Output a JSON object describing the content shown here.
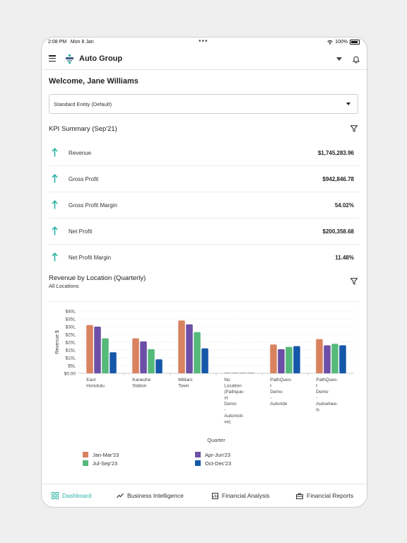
{
  "status": {
    "time": "2:08 PM",
    "date": "Mon 8 Jan",
    "battery": "100%"
  },
  "app": {
    "title": "Auto Group"
  },
  "welcome": "Welcome, Jane Williams",
  "entity_select": {
    "value": "Standard Entity (Default)"
  },
  "kpi": {
    "title": "KPI Summary (Sep'21)",
    "items": [
      {
        "label": "Revenue",
        "value": "$1,745,283.96",
        "trend": "up"
      },
      {
        "label": "Gross Profit",
        "value": "$942,846.78",
        "trend": "up"
      },
      {
        "label": "Gross Profit Margin",
        "value": "54.02%",
        "trend": "up"
      },
      {
        "label": "Net Profit",
        "value": "$200,358.68",
        "trend": "up"
      },
      {
        "label": "Net Profit Margin",
        "value": "11.48%",
        "trend": "up"
      }
    ]
  },
  "chart_section": {
    "title": "Revenue by Location (Quarterly)",
    "subtitle": "All Locations"
  },
  "chart_data": {
    "type": "bar",
    "ylabel": "Revenue $",
    "xlabel": "Quarter",
    "ylim": [
      0,
      40
    ],
    "yticks": [
      "$0.00",
      "$5L",
      "$10L",
      "$15L",
      "$20L",
      "$25L",
      "$30L",
      "$35L",
      "$40L"
    ],
    "categories": [
      [
        "East",
        "Honolulu"
      ],
      [
        "Kaneohe",
        "Station"
      ],
      [
        "Mililani",
        "Town"
      ],
      [
        "No",
        "Location",
        "(Pathque-",
        "st",
        "Demo",
        "-",
        "Automoti-",
        "ve)"
      ],
      [
        "PathQues-",
        "t",
        "Demo",
        "-",
        "Autoride"
      ],
      [
        "PathQues-",
        "t",
        "Demo",
        "-",
        "Autowhee-",
        "ls"
      ]
    ],
    "series": [
      {
        "name": "Jan-Mar'23",
        "color": "#d9825f",
        "values": [
          31,
          22.5,
          34,
          0,
          18.5,
          22
        ]
      },
      {
        "name": "Apr-Jun'23",
        "color": "#6c4fa6",
        "values": [
          30,
          20.5,
          31.5,
          0,
          15.5,
          18
        ]
      },
      {
        "name": "Jul-Sep'23",
        "color": "#55b97a",
        "values": [
          22.5,
          15.5,
          26.5,
          0,
          17,
          19
        ]
      },
      {
        "name": "Oct-Dec'23",
        "color": "#1557a8",
        "values": [
          13.5,
          9,
          16,
          0,
          17.5,
          18
        ]
      }
    ],
    "grid": true,
    "legend_position": "bottom"
  },
  "nav": {
    "items": [
      {
        "label": "Dashboard",
        "icon": "dashboard-icon",
        "active": true
      },
      {
        "label": "Business Intelligence",
        "icon": "trend-icon",
        "active": false
      },
      {
        "label": "Financial Analysis",
        "icon": "analysis-icon",
        "active": false
      },
      {
        "label": "Financial Reports",
        "icon": "briefcase-icon",
        "active": false
      }
    ]
  },
  "colors": {
    "accent": "#2bb3a6"
  }
}
